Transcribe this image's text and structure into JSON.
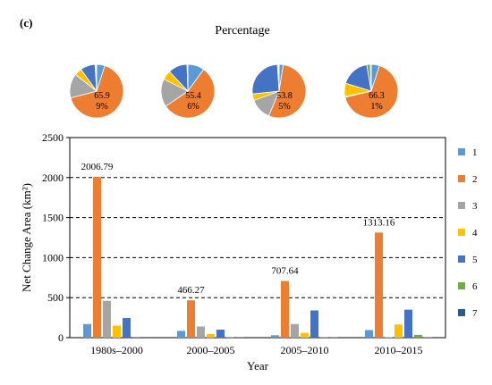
{
  "panel_label": "(c)",
  "pie_title": "Percentage",
  "colors": {
    "1": "#5b9bd5",
    "2": "#ed7d31",
    "3": "#a5a5a5",
    "4": "#ffc000",
    "5": "#4472c4",
    "6": "#70ad47",
    "7": "#255e91"
  },
  "chart_data": [
    {
      "type": "pie",
      "group": "1980s–2000",
      "slices": [
        {
          "class": "1",
          "value": 5
        },
        {
          "class": "2",
          "value": 65.9
        },
        {
          "class": "3",
          "value": 14.7
        },
        {
          "class": "4",
          "value": 4.5
        },
        {
          "class": "5",
          "value": 9
        },
        {
          "class": "6",
          "value": 0.5
        },
        {
          "class": "7",
          "value": 0.4
        }
      ],
      "labels": [
        "65.9",
        "9%"
      ]
    },
    {
      "type": "pie",
      "group": "2000–2005",
      "slices": [
        {
          "class": "1",
          "value": 10
        },
        {
          "class": "2",
          "value": 55.4
        },
        {
          "class": "3",
          "value": 17
        },
        {
          "class": "4",
          "value": 5.6
        },
        {
          "class": "5",
          "value": 11.5
        },
        {
          "class": "6",
          "value": 0.3
        },
        {
          "class": "7",
          "value": 0.2
        }
      ],
      "labels": [
        "55.4",
        "6%"
      ]
    },
    {
      "type": "pie",
      "group": "2005–2010",
      "slices": [
        {
          "class": "1",
          "value": 2.5
        },
        {
          "class": "2",
          "value": 53.8
        },
        {
          "class": "3",
          "value": 13
        },
        {
          "class": "4",
          "value": 4
        },
        {
          "class": "5",
          "value": 25.7
        },
        {
          "class": "6",
          "value": 0.6
        },
        {
          "class": "7",
          "value": 0.4
        }
      ],
      "labels": [
        "53.8",
        "5%"
      ]
    },
    {
      "type": "pie",
      "group": "2010–2015",
      "slices": [
        {
          "class": "1",
          "value": 5
        },
        {
          "class": "2",
          "value": 66.3
        },
        {
          "class": "3",
          "value": 0.5
        },
        {
          "class": "4",
          "value": 8
        },
        {
          "class": "5",
          "value": 17.5
        },
        {
          "class": "6",
          "value": 2.2
        },
        {
          "class": "7",
          "value": 0.5
        }
      ],
      "labels": [
        "66.3",
        "1%"
      ]
    },
    {
      "type": "bar",
      "categories": [
        "1980s–2000",
        "2000–2005",
        "2005–2010",
        "2010–2015"
      ],
      "series": [
        {
          "name": "1",
          "values": [
            170,
            85,
            30,
            95
          ]
        },
        {
          "name": "2",
          "values": [
            2006.79,
            466.27,
            707.64,
            1313.16
          ]
        },
        {
          "name": "3",
          "values": [
            460,
            140,
            170,
            5
          ]
        },
        {
          "name": "4",
          "values": [
            150,
            45,
            60,
            165
          ]
        },
        {
          "name": "5",
          "values": [
            245,
            100,
            340,
            350
          ]
        },
        {
          "name": "6",
          "values": [
            10,
            4,
            8,
            35
          ]
        },
        {
          "name": "7",
          "values": [
            8,
            3,
            6,
            6
          ]
        }
      ],
      "data_labels": [
        "2006.79",
        "466.27",
        "707.64",
        "1313.16"
      ],
      "xlabel": "Year",
      "ylabel": "Net Change Area (km²)",
      "ylim": [
        0,
        2500
      ],
      "yticks": [
        "0",
        "500",
        "1000",
        "1500",
        "2000",
        "2500"
      ],
      "dashed_gridlines": [
        500,
        1000,
        1500,
        2000
      ],
      "legend": [
        "1",
        "2",
        "3",
        "4",
        "5",
        "6",
        "7"
      ],
      "legend_placement": "right"
    }
  ]
}
